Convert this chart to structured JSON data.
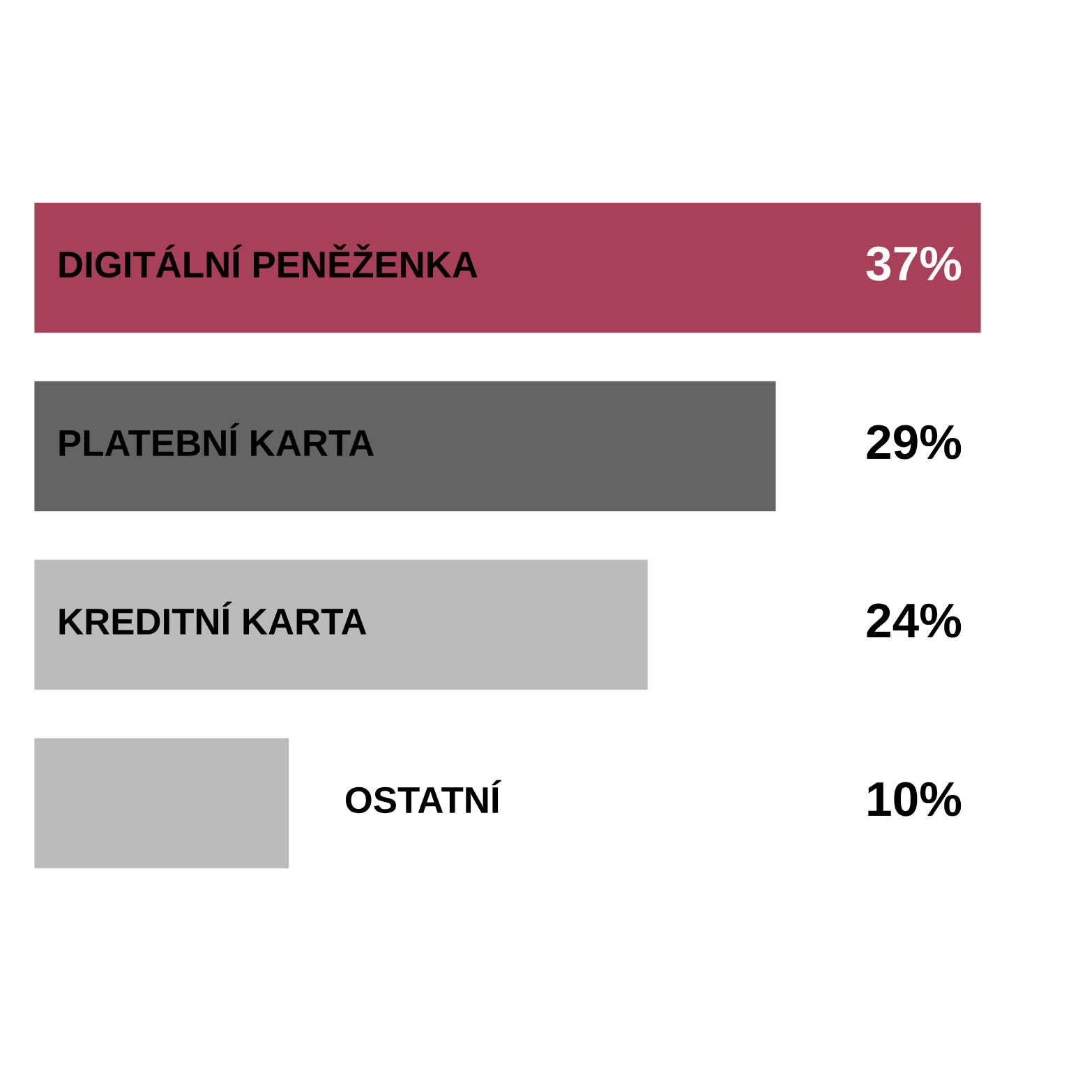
{
  "chart_data": {
    "type": "bar",
    "orientation": "horizontal",
    "categories": [
      "DIGITÁLNÍ PENĚŽENKA",
      "PLATEBNÍ KARTA",
      "KREDITNÍ KARTA",
      "OSTATNÍ"
    ],
    "values": [
      37,
      29,
      24,
      10
    ],
    "colors": [
      "#a8405a",
      "#646464",
      "#bbbbbb",
      "#bbbbbb"
    ],
    "value_labels": [
      "37%",
      "29%",
      "24%",
      "10%"
    ],
    "tick_labels": false
  }
}
